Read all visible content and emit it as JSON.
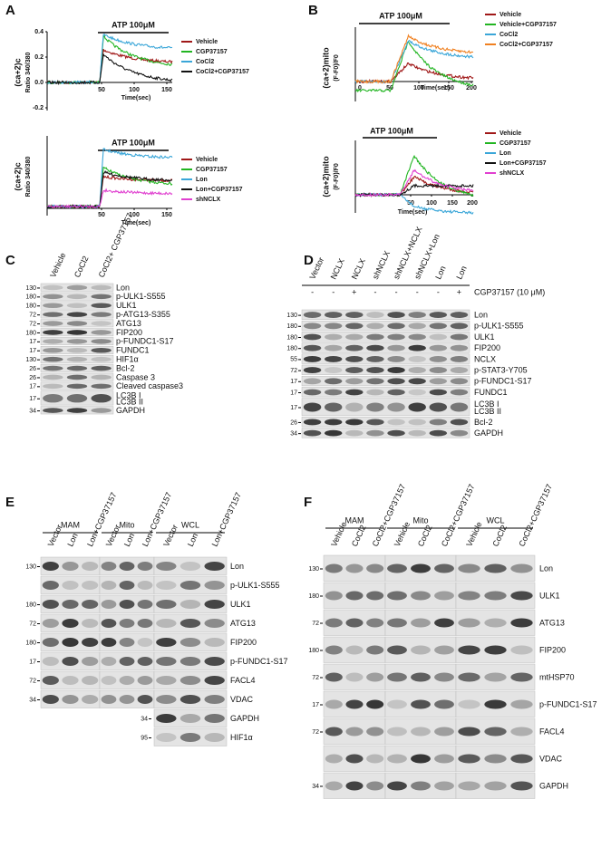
{
  "panel_labels": [
    "A",
    "B",
    "C",
    "D",
    "E",
    "F"
  ],
  "charts": [
    {
      "title": "ATP 100μM",
      "y_label": "(ca+2)c",
      "y_sublabel": "Ratio 340/380",
      "x_label": "Time(sec)",
      "yticks": [
        "0.4",
        "0.2",
        "0.0",
        "-0.2"
      ],
      "xticks": [
        "50",
        "100",
        "150"
      ],
      "legend": [
        {
          "name": "Vehicle",
          "color": "#a01818"
        },
        {
          "name": "CGP37157",
          "color": "#22b522"
        },
        {
          "name": "CoCl2",
          "color": "#3aa6d8"
        },
        {
          "name": "CoCl2+CGP37157",
          "color": "#111111"
        }
      ]
    },
    {
      "title": "ATP 100μM",
      "y_label": "(ca+2)c",
      "y_sublabel": "Ratio 340/380",
      "x_label": "Time(sec)",
      "xticks": [
        "50",
        "100",
        "150"
      ],
      "legend": [
        {
          "name": "Vehicle",
          "color": "#a01818"
        },
        {
          "name": "CGP37157",
          "color": "#22b522"
        },
        {
          "name": "Lon",
          "color": "#3aa6d8"
        },
        {
          "name": "Lon+CGP37157",
          "color": "#111111"
        },
        {
          "name": "shNCLX",
          "color": "#e040d0"
        }
      ]
    },
    {
      "title": "ATP 100μM",
      "y_label": "(ca+2)mito",
      "y_sublabel": "(F-F0)/F0",
      "x_label": "Time(sec)",
      "xticks": [
        "0",
        "50",
        "100",
        "150",
        "200"
      ],
      "legend": [
        {
          "name": "Vehicle",
          "color": "#a01818"
        },
        {
          "name": "Vehicle+CGP37157",
          "color": "#22b522"
        },
        {
          "name": "CoCl2",
          "color": "#3aa6d8"
        },
        {
          "name": "CoCl2+CGP37157",
          "color": "#f08020"
        }
      ]
    },
    {
      "title": "ATP 100μM",
      "y_label": "(ca+2)mito",
      "y_sublabel": "(F-F0)/F0",
      "x_label": "Time(sec)",
      "xticks": [
        "50",
        "100",
        "150",
        "200"
      ],
      "legend": [
        {
          "name": "Vehicle",
          "color": "#a01818"
        },
        {
          "name": "CGP37157",
          "color": "#22b522"
        },
        {
          "name": "Lon",
          "color": "#3aa6d8"
        },
        {
          "name": "Lon+CGP37157",
          "color": "#111111"
        },
        {
          "name": "shNCLX",
          "color": "#e040d0"
        }
      ]
    }
  ],
  "panel_c": {
    "lanes": [
      "Vehicle",
      "CoCl2",
      "CoCl2+ CGP37157"
    ],
    "rows": [
      {
        "marker": 130,
        "label": "Lon"
      },
      {
        "marker": 180,
        "label": "p-ULK1-S555"
      },
      {
        "marker": 180,
        "label": "ULK1"
      },
      {
        "marker": 72,
        "label": "p-ATG13-S355"
      },
      {
        "marker": 72,
        "label": "ATG13"
      },
      {
        "marker": 180,
        "label": "FIP200"
      },
      {
        "marker": 17,
        "label": "p-FUNDC1-S17"
      },
      {
        "marker": 17,
        "label": "FUNDC1"
      },
      {
        "marker": 130,
        "label": "HIF1α"
      },
      {
        "marker": 26,
        "label": "Bcl-2"
      },
      {
        "marker": 26,
        "label": "Caspase 3"
      },
      {
        "marker": 17,
        "label": "Cleaved caspase3"
      },
      {
        "marker": 17,
        "label": "LC3B I",
        "label2": "LC3B II"
      },
      {
        "marker": 34,
        "label": "GAPDH"
      }
    ]
  },
  "panel_d": {
    "lanes": [
      "Vector",
      "NCLX",
      "NCLX",
      "shNCLX",
      "shNCLX+NCLX",
      "shNCLX+Lon",
      "Lon",
      "Lon"
    ],
    "treatment": [
      "-",
      "-",
      "+",
      "-",
      "-",
      "-",
      "-",
      "+"
    ],
    "treatment_label": "CGP37157 (10 μM)",
    "rows": [
      {
        "marker": 130,
        "label": "Lon"
      },
      {
        "marker": 180,
        "label": "p-ULK1-S555"
      },
      {
        "marker": 180,
        "label": "ULK1"
      },
      {
        "marker": 180,
        "label": "FIP200"
      },
      {
        "marker": 55,
        "label": "NCLX"
      },
      {
        "marker": 72,
        "label": "p-STAT3-Y705"
      },
      {
        "marker": 17,
        "label": "p-FUNDC1-S17"
      },
      {
        "marker": 17,
        "label": "FUNDC1"
      },
      {
        "marker": 17,
        "label": "LC3B I",
        "label2": "LC3B II"
      },
      {
        "marker": 26,
        "label": "Bcl-2"
      },
      {
        "marker": 34,
        "label": "GAPDH"
      }
    ]
  },
  "panel_e": {
    "groups": [
      "MAM",
      "Mito",
      "WCL"
    ],
    "lanes": [
      "Vector",
      "Lon",
      "Lon+CGP37157",
      "Vector",
      "Lon",
      "Lon+CGP37157",
      "Vector",
      "Lon",
      "Lon+CGP37157"
    ],
    "rows": [
      {
        "marker": 130,
        "label": "Lon"
      },
      {
        "label": "p-ULK1-S555"
      },
      {
        "marker": 180,
        "label": "ULK1"
      },
      {
        "marker": 72,
        "label": "ATG13"
      },
      {
        "marker": 180,
        "label": "FIP200"
      },
      {
        "marker": 17,
        "label": "p-FUNDC1-S17"
      },
      {
        "marker": 72,
        "label": "FACL4"
      },
      {
        "marker": 34,
        "label": "VDAC"
      },
      {
        "marker": 34,
        "label": "GAPDH"
      },
      {
        "marker": 95,
        "label": "HIF1α"
      }
    ]
  },
  "panel_f": {
    "groups": [
      "MAM",
      "Mito",
      "WCL"
    ],
    "lanes": [
      "Vehicle",
      "CoCl2",
      "CoCl2+CGP37157",
      "Vehicle",
      "CoCl2",
      "CoCl2+CGP37157",
      "Vehicle",
      "CoCl2",
      "CoCl2+CGP37157"
    ],
    "rows": [
      {
        "marker": 130,
        "label": "Lon"
      },
      {
        "marker": 180,
        "label": "ULK1"
      },
      {
        "marker": 72,
        "label": "ATG13"
      },
      {
        "marker": 180,
        "label": "FIP200"
      },
      {
        "marker": 72,
        "label": "mtHSP70"
      },
      {
        "marker": 17,
        "label": "p-FUNDC1-S17"
      },
      {
        "marker": 72,
        "label": "FACL4"
      },
      {
        "label": "VDAC"
      },
      {
        "marker": 34,
        "label": "GAPDH"
      }
    ]
  }
}
